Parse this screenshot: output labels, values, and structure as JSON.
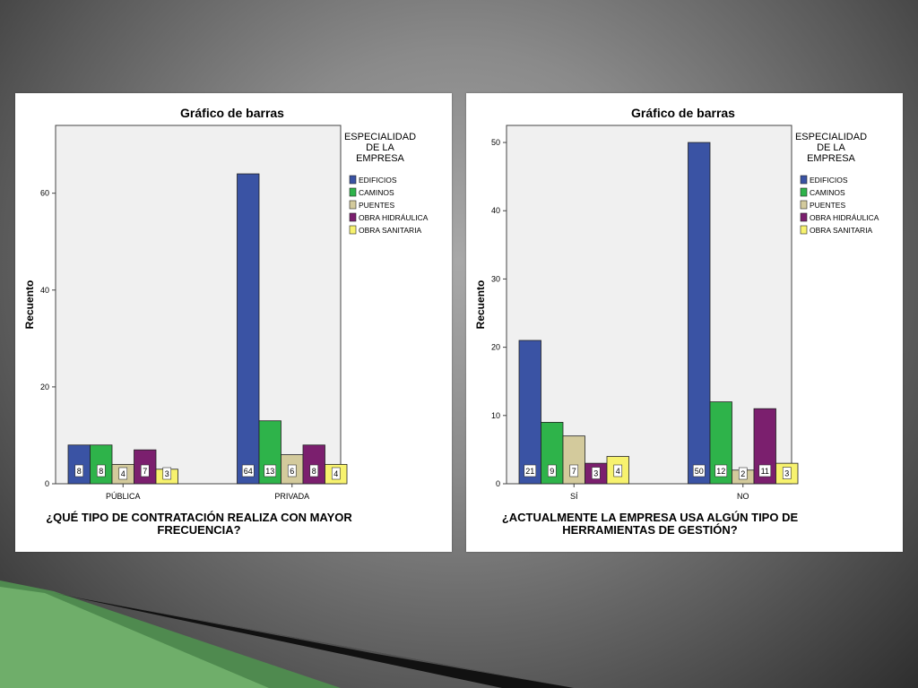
{
  "chart_data": [
    {
      "type": "bar",
      "title": "Gráfico de barras",
      "xlabel_lines": [
        "¿QUÉ TIPO DE CONTRATACIÓN REALIZA CON MAYOR",
        "FRECUENCIA?"
      ],
      "ylabel": "Recuento",
      "ylim": [
        0,
        74
      ],
      "yticks": [
        0,
        20,
        40,
        60
      ],
      "categories": [
        "PÚBLICA",
        "PRIVADA"
      ],
      "legend_title_lines": [
        "ESPECIALIDAD",
        "DE LA",
        "EMPRESA"
      ],
      "legend_position": "right",
      "series": [
        {
          "name": "EDIFICIOS",
          "color": "#3A53A4",
          "values": [
            8,
            64
          ]
        },
        {
          "name": "CAMINOS",
          "color": "#2EB34A",
          "values": [
            8,
            13
          ]
        },
        {
          "name": "PUENTES",
          "color": "#D3CA9C",
          "values": [
            4,
            6
          ]
        },
        {
          "name": "OBRA HIDRÁULICA",
          "color": "#7B1F6E",
          "values": [
            7,
            8
          ]
        },
        {
          "name": "OBRA SANITARIA",
          "color": "#F7F26E",
          "values": [
            3,
            4
          ]
        }
      ]
    },
    {
      "type": "bar",
      "title": "Gráfico de barras",
      "xlabel_lines": [
        "¿ACTUALMENTE LA EMPRESA USA ALGÚN TIPO DE",
        "HERRAMIENTAS DE GESTIÓN?"
      ],
      "ylabel": "Recuento",
      "ylim": [
        0,
        52.5
      ],
      "yticks": [
        0,
        10,
        20,
        30,
        40,
        50
      ],
      "categories": [
        "SÍ",
        "NO"
      ],
      "legend_title_lines": [
        "ESPECIALIDAD",
        "DE LA",
        "EMPRESA"
      ],
      "legend_position": "right",
      "series": [
        {
          "name": "EDIFICIOS",
          "color": "#3A53A4",
          "values": [
            21,
            50
          ]
        },
        {
          "name": "CAMINOS",
          "color": "#2EB34A",
          "values": [
            9,
            12
          ]
        },
        {
          "name": "PUENTES",
          "color": "#D3CA9C",
          "values": [
            7,
            2
          ]
        },
        {
          "name": "OBRA HIDRÁULICA",
          "color": "#7B1F6E",
          "values": [
            3,
            11
          ]
        },
        {
          "name": "OBRA SANITARIA",
          "color": "#F7F26E",
          "values": [
            4,
            3
          ]
        }
      ]
    }
  ]
}
